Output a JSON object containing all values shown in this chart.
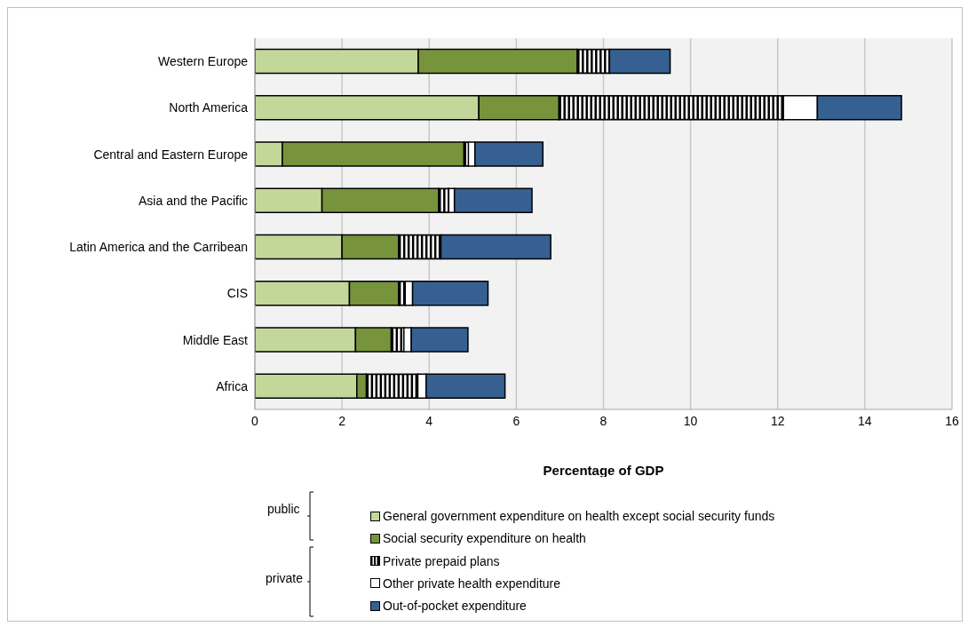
{
  "chart_data": {
    "type": "bar",
    "orientation": "horizontal",
    "stacked": true,
    "xlabel": "Percentage of GDP",
    "categories": [
      "Western Europe",
      "North America",
      "Central and Eastern Europe",
      "Asia and the Pacific",
      "Latin America and the Carribean",
      "CIS",
      "Middle East",
      "Africa"
    ],
    "series": [
      {
        "name": "General government expenditure on health except social security funds",
        "color": "#c4d79b",
        "values": [
          3.75,
          5.14,
          0.63,
          1.54,
          2.0,
          2.17,
          2.31,
          2.34
        ]
      },
      {
        "name": "Social security expenditure on health",
        "color": "#77933c",
        "values": [
          3.65,
          1.84,
          4.17,
          2.68,
          1.3,
          1.13,
          0.82,
          0.22
        ]
      },
      {
        "name": "Private prepaid plans",
        "color": "#000000",
        "values": [
          0.74,
          5.15,
          0.1,
          0.23,
          0.97,
          0.15,
          0.29,
          1.18
        ]
      },
      {
        "name": "Other private health expenditure",
        "color": "#ffffff",
        "values": [
          0,
          0.78,
          0.15,
          0.13,
          0,
          0.17,
          0.17,
          0.19
        ]
      },
      {
        "name": "Out-of-pocket expenditure",
        "color": "#366092",
        "values": [
          1.39,
          1.93,
          1.56,
          1.78,
          2.52,
          1.73,
          1.3,
          1.81
        ]
      }
    ],
    "xlim": [
      0,
      16
    ],
    "xticks": [
      0,
      2,
      4,
      6,
      8,
      10,
      12,
      14,
      16
    ],
    "grid": "x",
    "legend": "bottom",
    "annotations": [
      "public",
      "private"
    ]
  }
}
